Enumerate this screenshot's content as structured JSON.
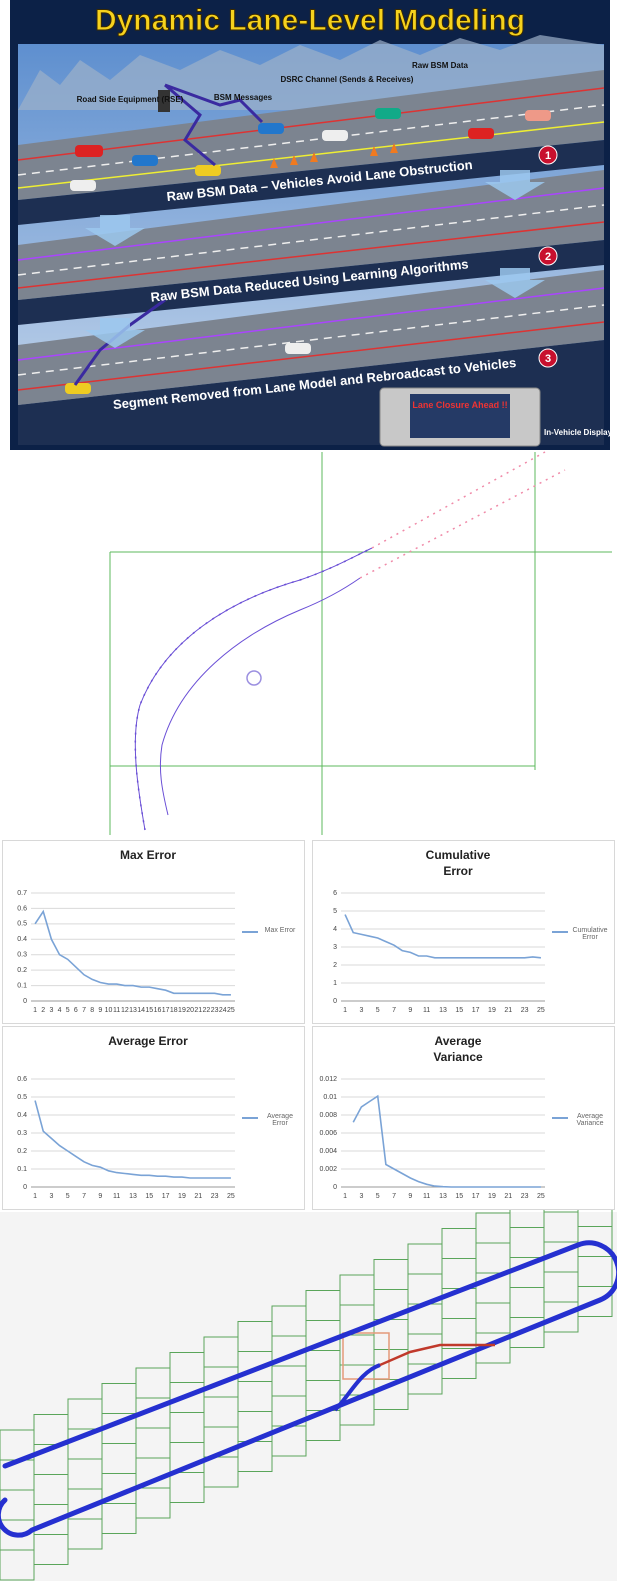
{
  "illustration": {
    "title": "Dynamic Lane-Level Modeling",
    "labels": [
      "Road Side Equipment (RSE)",
      "BSM Messages",
      "DSRC Channel (Sends & Receives)",
      "Raw BSM Data"
    ],
    "steps": [
      {
        "number": "1",
        "caption": "Raw BSM Data – Vehicles Avoid Lane Obstruction"
      },
      {
        "number": "2",
        "caption": "Raw BSM Data Reduced Using Learning Algorithms"
      },
      {
        "number": "3",
        "caption": "Segment Removed from Lane Model and Rebroadcast to Vehicles"
      }
    ],
    "screen_text": "Lane Closure Ahead !!",
    "display_label": "In-Vehicle Display"
  },
  "chart_data": [
    {
      "type": "line",
      "title": "Max Error",
      "categories": [
        "1",
        "2",
        "3",
        "4",
        "5",
        "6",
        "7",
        "8",
        "9",
        "10",
        "11",
        "12",
        "13",
        "14",
        "15",
        "16",
        "17",
        "18",
        "19",
        "20",
        "21",
        "22",
        "23",
        "24",
        "25"
      ],
      "series": [
        {
          "name": "Max Error",
          "color": "#7aa3d6",
          "values": [
            0.5,
            0.58,
            0.4,
            0.3,
            0.27,
            0.22,
            0.17,
            0.14,
            0.12,
            0.11,
            0.11,
            0.1,
            0.1,
            0.09,
            0.09,
            0.08,
            0.07,
            0.05,
            0.05,
            0.05,
            0.05,
            0.05,
            0.05,
            0.04,
            0.04
          ]
        }
      ],
      "ylim": [
        0,
        0.7
      ],
      "yticks": [
        0,
        0.1,
        0.2,
        0.3,
        0.4,
        0.5,
        0.6,
        0.7
      ],
      "grid": true,
      "legend": "right"
    },
    {
      "type": "line",
      "title": "Cumulative Error",
      "categories": [
        "1",
        null,
        "3",
        null,
        "5",
        null,
        "7",
        null,
        "9",
        null,
        "11",
        null,
        "13",
        null,
        "15",
        null,
        "17",
        null,
        "19",
        null,
        "21",
        null,
        "23",
        null,
        "25"
      ],
      "series": [
        {
          "name": "Cumulative Error",
          "color": "#7aa3d6",
          "values": [
            4.8,
            3.8,
            3.7,
            3.6,
            3.5,
            3.3,
            3.1,
            2.8,
            2.7,
            2.5,
            2.5,
            2.4,
            2.4,
            2.4,
            2.4,
            2.4,
            2.4,
            2.4,
            2.4,
            2.4,
            2.4,
            2.4,
            2.4,
            2.45,
            2.4
          ]
        }
      ],
      "ylim": [
        0,
        6
      ],
      "yticks": [
        0,
        1,
        2,
        3,
        4,
        5,
        6
      ],
      "grid": true,
      "legend": "right"
    },
    {
      "type": "line",
      "title": "Average Error",
      "categories": [
        "1",
        null,
        "3",
        null,
        "5",
        null,
        "7",
        null,
        "9",
        null,
        "11",
        null,
        "13",
        null,
        "15",
        null,
        "17",
        null,
        "19",
        null,
        "21",
        null,
        "23",
        null,
        "25"
      ],
      "series": [
        {
          "name": "Average Error",
          "color": "#7aa3d6",
          "values": [
            0.48,
            0.31,
            0.27,
            0.23,
            0.2,
            0.17,
            0.14,
            0.12,
            0.11,
            0.09,
            0.08,
            0.075,
            0.07,
            0.065,
            0.065,
            0.06,
            0.06,
            0.055,
            0.055,
            0.05,
            0.05,
            0.05,
            0.05,
            0.05,
            0.05
          ]
        }
      ],
      "ylim": [
        0,
        0.6
      ],
      "yticks": [
        0,
        0.1,
        0.2,
        0.3,
        0.4,
        0.5,
        0.6
      ],
      "grid": true,
      "legend": "right"
    },
    {
      "type": "line",
      "title": "Average Variance",
      "categories": [
        "1",
        null,
        "3",
        null,
        "5",
        null,
        "7",
        null,
        "9",
        null,
        "11",
        null,
        "13",
        null,
        "15",
        null,
        "17",
        null,
        "19",
        null,
        "21",
        null,
        "23",
        null,
        "25"
      ],
      "series": [
        {
          "name": "Average Variance",
          "color": "#7aa3d6",
          "values": [
            null,
            0.0072,
            0.0089,
            0.0095,
            0.0101,
            0.0025,
            0.002,
            0.0015,
            0.001,
            0.0006,
            0.0003,
            0.0001,
            3e-05,
            0,
            0,
            0,
            0,
            0,
            0,
            0,
            0,
            0,
            0,
            0,
            0
          ]
        }
      ],
      "ylim": [
        0,
        0.012
      ],
      "yticks": [
        0,
        0.002,
        0.004,
        0.006,
        0.008,
        0.01,
        0.012
      ],
      "grid": true,
      "legend": "right"
    }
  ]
}
